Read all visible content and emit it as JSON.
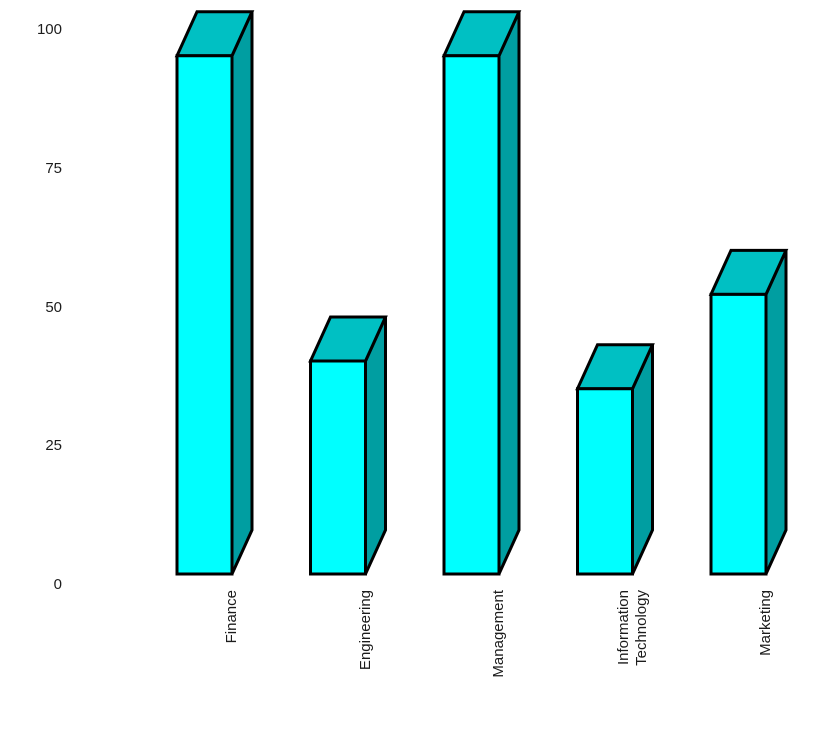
{
  "chart_data": {
    "type": "bar",
    "projection": "3d",
    "title": "",
    "xlabel": "",
    "ylabel": "",
    "categories": [
      "Finance",
      "Engineering",
      "Management",
      "Information Technology",
      "Marketing"
    ],
    "category_label_lines": [
      [
        "Finance"
      ],
      [
        "Engineering"
      ],
      [
        "Management"
      ],
      [
        "Information",
        "Technology"
      ],
      [
        "Marketing"
      ]
    ],
    "values": [
      95,
      40,
      95,
      35,
      52
    ],
    "ylim": [
      0,
      100
    ],
    "ytick_labels": [
      "0",
      "25",
      "50",
      "75",
      "100"
    ],
    "ytick_values": [
      0,
      25,
      50,
      75,
      100
    ],
    "grid": false,
    "legend": false,
    "x_label_rotation_deg": -90,
    "colors": {
      "bar_front": "#00FFFF",
      "bar_top": "#00C0C3",
      "bar_side": "#009EA1",
      "bar_edge": "#000000",
      "label_text": "#1c1c1c",
      "background": "#FFFFFF"
    }
  }
}
